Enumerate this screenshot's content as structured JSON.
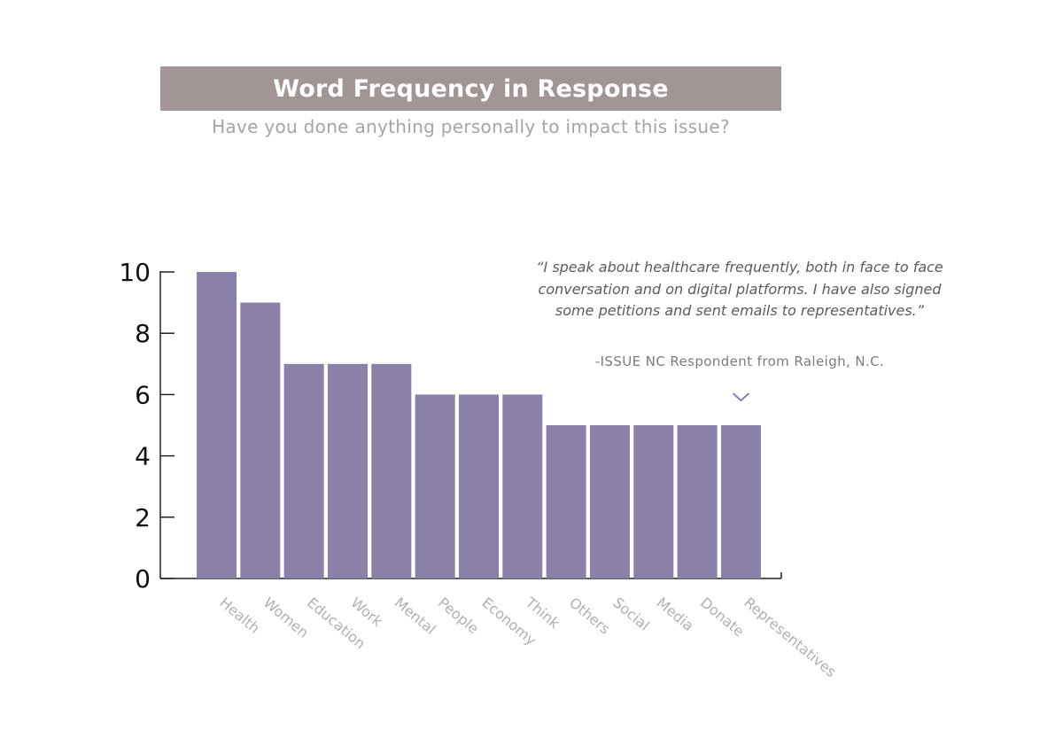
{
  "header": {
    "title": "Word Frequency in Response",
    "subtitle": "Have you done anything personally to impact this issue?"
  },
  "quote": {
    "text": "“I speak about healthcare frequently, both in face to face conversation and on digital platforms. I have also signed some petitions and sent emails to representatives.”",
    "attribution": "-ISSUE NC Respondent from Raleigh, N.C.",
    "pointer_icon": "chevron-down-icon",
    "pointer_category": "Representatives"
  },
  "colors": {
    "bar": "#8a80a8",
    "title_bar": "#a29596",
    "tick_label": "#111111",
    "category_label": "#b4aeb3",
    "axis": "#222222"
  },
  "chart_data": {
    "type": "bar",
    "title": "Word Frequency in Response",
    "subtitle": "Have you done anything personally to impact this issue?",
    "xlabel": "",
    "ylabel": "",
    "categories": [
      "Health",
      "Women",
      "Education",
      "Work",
      "Mental",
      "People",
      "Economy",
      "Think",
      "Others",
      "Social",
      "Media",
      "Donate",
      "Representatives"
    ],
    "values": [
      10,
      9,
      7,
      7,
      7,
      6,
      6,
      6,
      5,
      5,
      5,
      5,
      5
    ],
    "ylim": [
      0,
      10
    ],
    "yticks": [
      0,
      2,
      4,
      6,
      8,
      10
    ],
    "grid": false,
    "legend": "none"
  }
}
